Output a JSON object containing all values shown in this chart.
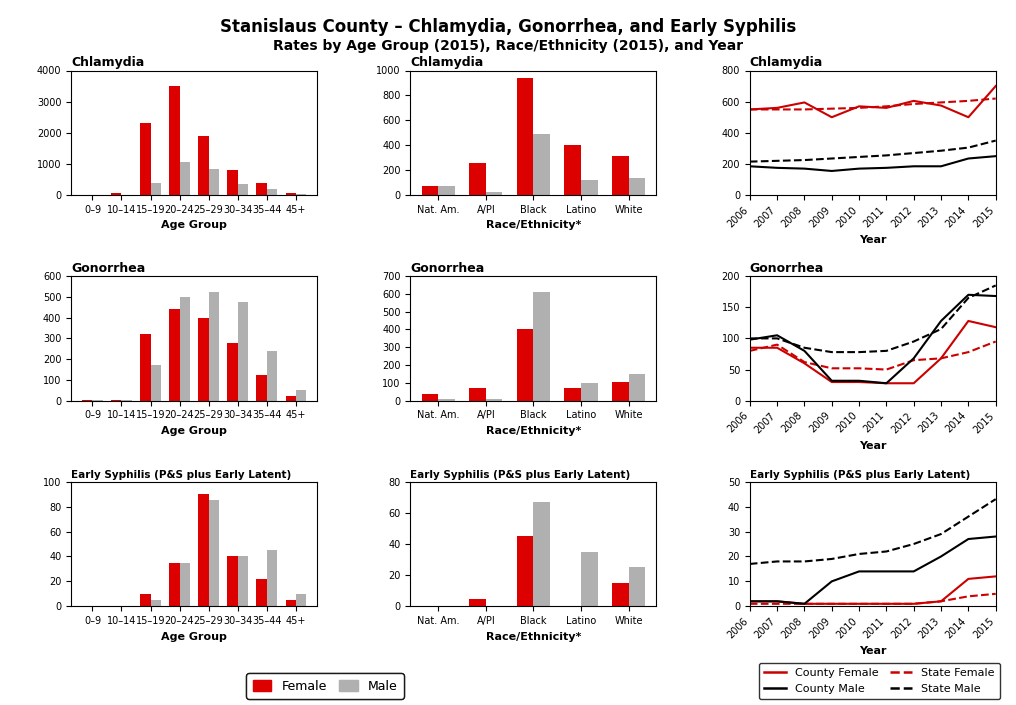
{
  "title": "Stanislaus County – Chlamydia, Gonorrhea, and Early Syphilis",
  "subtitle": "Rates by Age Group (2015), Race/Ethnicity (2015), and Year",
  "age_groups": [
    "0–9",
    "10–14",
    "15–19",
    "20–24",
    "25–29",
    "30–34",
    "35–44",
    "45+"
  ],
  "race_groups": [
    "Nat. Am.",
    "A/PI",
    "Black",
    "Latino",
    "White"
  ],
  "years": [
    2006,
    2007,
    2008,
    2009,
    2010,
    2011,
    2012,
    2013,
    2014,
    2015
  ],
  "chlamydia_age_female": [
    5,
    80,
    2300,
    3500,
    1900,
    800,
    400,
    80
  ],
  "chlamydia_age_male": [
    5,
    10,
    380,
    1050,
    850,
    370,
    200,
    50
  ],
  "chlamydia_race_female": [
    70,
    260,
    940,
    400,
    310
  ],
  "chlamydia_race_male": [
    70,
    25,
    490,
    120,
    140
  ],
  "chlamydia_year_county_female": [
    550,
    560,
    595,
    500,
    570,
    560,
    605,
    575,
    500,
    700
  ],
  "chlamydia_year_county_male": [
    185,
    175,
    170,
    155,
    170,
    175,
    185,
    185,
    235,
    250
  ],
  "chlamydia_year_state_female": [
    550,
    550,
    550,
    555,
    560,
    570,
    585,
    595,
    605,
    620
  ],
  "chlamydia_year_state_male": [
    215,
    220,
    225,
    235,
    245,
    255,
    270,
    285,
    305,
    350
  ],
  "gonorrhea_age_female": [
    5,
    5,
    320,
    440,
    400,
    280,
    125,
    25
  ],
  "gonorrhea_age_male": [
    5,
    5,
    170,
    500,
    525,
    475,
    240,
    50
  ],
  "gonorrhea_race_female": [
    40,
    70,
    400,
    70,
    105
  ],
  "gonorrhea_race_male": [
    10,
    10,
    610,
    100,
    150
  ],
  "gonorrhea_year_county_female": [
    85,
    85,
    60,
    30,
    30,
    28,
    28,
    68,
    128,
    118
  ],
  "gonorrhea_year_county_male": [
    98,
    105,
    80,
    32,
    32,
    28,
    68,
    128,
    170,
    168
  ],
  "gonorrhea_year_state_female": [
    80,
    90,
    62,
    52,
    52,
    50,
    65,
    68,
    78,
    95
  ],
  "gonorrhea_year_state_male": [
    100,
    100,
    85,
    78,
    78,
    80,
    95,
    115,
    165,
    185
  ],
  "syphilis_age_female": [
    0,
    0,
    10,
    35,
    90,
    40,
    22,
    5
  ],
  "syphilis_age_male": [
    0,
    0,
    5,
    35,
    85,
    40,
    45,
    10
  ],
  "syphilis_race_female": [
    0,
    5,
    45,
    0,
    15
  ],
  "syphilis_race_male": [
    0,
    0,
    67,
    35,
    25
  ],
  "syphilis_year_county_female": [
    2,
    2,
    1,
    1,
    1,
    1,
    1,
    2,
    11,
    12
  ],
  "syphilis_year_county_male": [
    2,
    2,
    1,
    10,
    14,
    14,
    14,
    20,
    27,
    28
  ],
  "syphilis_year_state_female": [
    1,
    1,
    1,
    1,
    1,
    1,
    1,
    2,
    4,
    5
  ],
  "syphilis_year_state_male": [
    17,
    18,
    18,
    19,
    21,
    22,
    25,
    29,
    36,
    43
  ],
  "female_color": "#dd0000",
  "male_color": "#b0b0b0",
  "county_female_color": "#cc0000",
  "county_male_color": "#000000",
  "state_female_color": "#cc0000",
  "state_male_color": "#000000"
}
